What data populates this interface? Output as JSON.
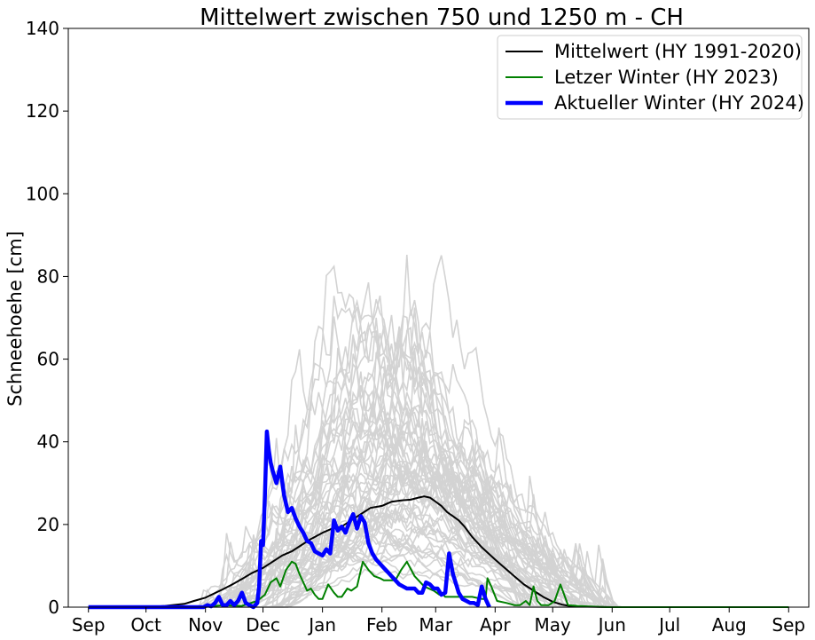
{
  "chart_data": {
    "type": "line",
    "title": "Mittelwert zwischen 750 und 1250 m  - CH",
    "xlabel": "",
    "ylabel": "Schneehoehe [cm]",
    "ylim": [
      0,
      140
    ],
    "yticks": [
      0,
      20,
      40,
      60,
      80,
      100,
      120,
      140
    ],
    "xlim": [
      -0.1,
      365
    ],
    "xticks": [
      {
        "label": "Sep",
        "day": 0
      },
      {
        "label": "Oct",
        "day": 30
      },
      {
        "label": "Nov",
        "day": 61
      },
      {
        "label": "Dec",
        "day": 91
      },
      {
        "label": "Jan",
        "day": 122
      },
      {
        "label": "Feb",
        "day": 153
      },
      {
        "label": "Mar",
        "day": 181
      },
      {
        "label": "Apr",
        "day": 212
      },
      {
        "label": "May",
        "day": 242
      },
      {
        "label": "Jun",
        "day": 273
      },
      {
        "label": "Jul",
        "day": 303
      },
      {
        "label": "Aug",
        "day": 334
      },
      {
        "label": "Sep",
        "day": 365
      }
    ],
    "grid": false,
    "legend_position": "top-right",
    "series": [
      {
        "name": "Mittelwert (HY 1991-2020)",
        "color": "#000000",
        "width": 2,
        "x": [
          0,
          30,
          40,
          50,
          55,
          61,
          65,
          70,
          75,
          80,
          85,
          91,
          96,
          101,
          106,
          111,
          116,
          122,
          127,
          132,
          137,
          142,
          147,
          153,
          158,
          163,
          168,
          172,
          175,
          178,
          181,
          184,
          187,
          190,
          193,
          196,
          200,
          205,
          212,
          217,
          222,
          227,
          232,
          237,
          242,
          247,
          252,
          260,
          273,
          300,
          365
        ],
        "y": [
          0,
          0,
          0.3,
          0.8,
          1.5,
          2.3,
          3.2,
          4.3,
          5.5,
          6.8,
          8.2,
          9.5,
          11,
          12.5,
          13.5,
          15,
          16.5,
          18,
          19,
          19.5,
          21,
          22.5,
          24,
          24.5,
          25.5,
          25.8,
          26,
          26.5,
          26.8,
          26.5,
          25.5,
          24.5,
          23,
          22,
          21,
          19.5,
          17,
          14.5,
          11.5,
          9.5,
          7.5,
          5.5,
          4,
          2.5,
          1.3,
          0.6,
          0.2,
          0.1,
          0,
          0,
          0
        ]
      },
      {
        "name": "Letzer Winter (HY 2023)",
        "color": "#008000",
        "width": 2,
        "x": [
          0,
          60,
          70,
          80,
          88,
          92,
          95,
          98,
          100,
          103,
          106,
          108,
          110,
          112,
          114,
          116,
          118,
          120,
          122,
          125,
          128,
          130,
          132,
          135,
          137,
          140,
          143,
          146,
          149,
          152,
          154,
          157,
          160,
          163,
          166,
          170,
          175,
          180,
          183,
          185,
          186,
          188,
          190,
          195,
          200,
          205,
          207,
          208,
          210,
          213,
          218,
          222,
          225,
          228,
          230,
          232,
          234,
          236,
          240,
          243,
          246,
          250,
          255,
          260,
          270,
          365
        ],
        "y": [
          0,
          0,
          0.5,
          0.3,
          1.5,
          3,
          6,
          7,
          5,
          9,
          11,
          10.5,
          8,
          6,
          4,
          4.5,
          3,
          2,
          2,
          5.5,
          3.5,
          2.5,
          2.5,
          4.5,
          4,
          5,
          11,
          9,
          7.5,
          7,
          6.5,
          6.5,
          6.5,
          9,
          11,
          7.5,
          5,
          4,
          3,
          3,
          2.5,
          2.5,
          2.5,
          2.5,
          2.5,
          2,
          2,
          7,
          5,
          1.5,
          1,
          0.5,
          0.5,
          1.5,
          0.5,
          5,
          1.5,
          0.5,
          0.5,
          1.5,
          5.5,
          0.5,
          0.3,
          0.2,
          0,
          0
        ]
      },
      {
        "name": "Aktueller Winter (HY 2024)",
        "color": "#0000ff",
        "width": 4.5,
        "x": [
          0,
          60,
          62,
          64,
          66,
          68,
          70,
          72,
          74,
          76,
          78,
          80,
          82,
          84,
          86,
          88,
          89,
          90,
          91,
          92,
          93,
          94,
          95,
          96,
          98,
          100,
          102,
          104,
          106,
          108,
          110,
          112,
          114,
          116,
          118,
          120,
          122,
          124,
          126,
          128,
          130,
          132,
          134,
          136,
          138,
          140,
          142,
          144,
          146,
          148,
          150,
          152,
          154,
          156,
          158,
          160,
          162,
          164,
          166,
          168,
          170,
          172,
          174,
          176,
          178,
          180,
          182,
          184,
          186,
          188,
          190,
          192,
          193,
          195,
          197,
          199,
          201,
          203,
          205,
          207,
          209
        ],
        "y": [
          0,
          0,
          0.5,
          0.2,
          1,
          2.5,
          0.5,
          0.5,
          1.5,
          0.5,
          1.5,
          3.5,
          1,
          0.5,
          0,
          1,
          5,
          16,
          15,
          27,
          42.5,
          38,
          35,
          33,
          30,
          34,
          27,
          23,
          24,
          21.5,
          19.5,
          18,
          16,
          15.5,
          13.5,
          13,
          12.5,
          14,
          13,
          21,
          18.5,
          19.5,
          18,
          20.5,
          22.5,
          19,
          22,
          20.5,
          15.5,
          13,
          11.5,
          10.5,
          9.5,
          8.5,
          7.5,
          6.5,
          5.5,
          5,
          4.5,
          4.5,
          4.5,
          3.5,
          3.5,
          6,
          5.5,
          4.5,
          4.5,
          3,
          3.5,
          13,
          8,
          5,
          3.5,
          2,
          1.5,
          1,
          1,
          0.5,
          5,
          2,
          0
        ]
      }
    ],
    "background_series_note": "",
    "background_color": "#d3d3d3"
  }
}
